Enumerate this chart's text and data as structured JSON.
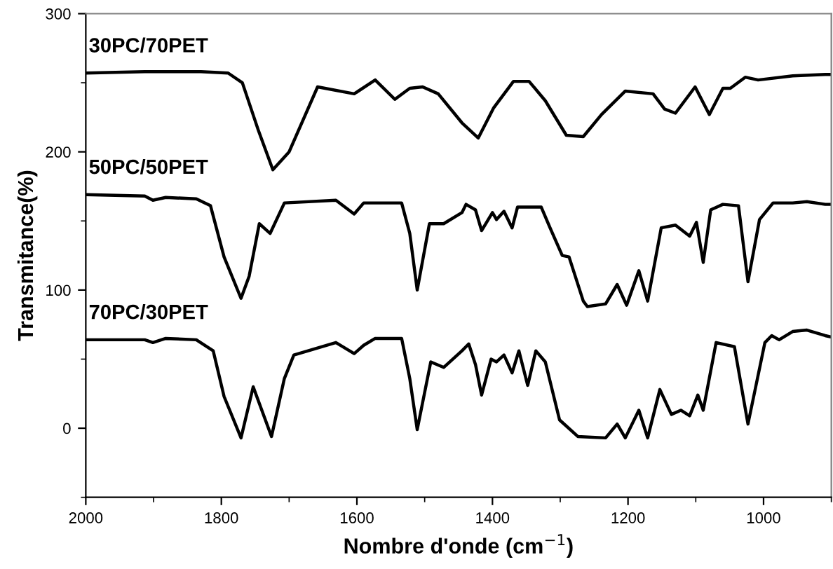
{
  "chart_data": {
    "type": "line",
    "xlabel": "Nombre d'onde (cm$^{−1}$)",
    "ylabel": "Transmitance(%)",
    "xlim": [
      2000,
      900
    ],
    "xticks": [
      2000,
      1800,
      1600,
      1400,
      1200,
      1000
    ],
    "ylim": [
      -50,
      300
    ],
    "yticks": [
      0,
      100,
      200,
      300
    ],
    "grid": false,
    "legend": false,
    "marker": "none",
    "line_style": "solid",
    "series": [
      {
        "name": "30PC/70PET",
        "color": "#000000",
        "x": [
          2000,
          1913,
          1830,
          1790,
          1769,
          1745,
          1724,
          1700,
          1658,
          1604,
          1573,
          1544,
          1522,
          1503,
          1480,
          1445,
          1421,
          1398,
          1369,
          1346,
          1322,
          1291,
          1266,
          1239,
          1204,
          1163,
          1146,
          1130,
          1101,
          1080,
          1060,
          1049,
          1027,
          1008,
          957,
          909,
          900
        ],
        "values": [
          257,
          258,
          258,
          257,
          250,
          215,
          187,
          200,
          247,
          242,
          252,
          238,
          246,
          247,
          242,
          221,
          210,
          232,
          251,
          251,
          237,
          212,
          211,
          227,
          244,
          242,
          231,
          228,
          247,
          227,
          246,
          246,
          254,
          252,
          255,
          256,
          256
        ]
      },
      {
        "name": "50PC/50PET",
        "color": "#000000",
        "x": [
          2000,
          1913,
          1901,
          1882,
          1837,
          1816,
          1796,
          1771,
          1759,
          1744,
          1728,
          1707,
          1631,
          1604,
          1590,
          1534,
          1522,
          1511,
          1493,
          1472,
          1445,
          1439,
          1425,
          1416,
          1400,
          1394,
          1383,
          1371,
          1363,
          1328,
          1315,
          1297,
          1287,
          1266,
          1260,
          1233,
          1216,
          1202,
          1184,
          1171,
          1151,
          1130,
          1109,
          1099,
          1089,
          1078,
          1060,
          1037,
          1023,
          1006,
          986,
          957,
          936,
          909,
          900
        ],
        "values": [
          169,
          168,
          165,
          167,
          166,
          161,
          124,
          94,
          110,
          148,
          141,
          163,
          165,
          155,
          163,
          163,
          141,
          100,
          148,
          148,
          156,
          162,
          158,
          143,
          156,
          151,
          157,
          145,
          160,
          160,
          145,
          125,
          124,
          92,
          88,
          90,
          104,
          89,
          114,
          92,
          145,
          147,
          139,
          149,
          120,
          158,
          162,
          161,
          106,
          151,
          163,
          163,
          164,
          162,
          162
        ]
      },
      {
        "name": "70PC/30PET",
        "color": "#000000",
        "x": [
          2000,
          1913,
          1901,
          1882,
          1837,
          1812,
          1796,
          1771,
          1753,
          1726,
          1707,
          1693,
          1631,
          1604,
          1590,
          1573,
          1534,
          1522,
          1511,
          1491,
          1472,
          1445,
          1435,
          1425,
          1416,
          1402,
          1394,
          1383,
          1371,
          1361,
          1348,
          1336,
          1322,
          1301,
          1274,
          1233,
          1216,
          1204,
          1184,
          1171,
          1153,
          1136,
          1122,
          1109,
          1097,
          1089,
          1070,
          1043,
          1023,
          998,
          988,
          977,
          957,
          936,
          909,
          900
        ],
        "values": [
          64,
          64,
          62,
          65,
          64,
          56,
          23,
          -7,
          30,
          -6,
          36,
          53,
          62,
          54,
          60,
          65,
          65,
          36,
          -1,
          48,
          44,
          56,
          61,
          46,
          24,
          50,
          48,
          53,
          40,
          56,
          31,
          56,
          48,
          6,
          -6,
          -7,
          3,
          -7,
          13,
          -7,
          28,
          10,
          13,
          9,
          24,
          13,
          62,
          59,
          3,
          62,
          67,
          64,
          70,
          71,
          67,
          66
        ]
      }
    ]
  }
}
